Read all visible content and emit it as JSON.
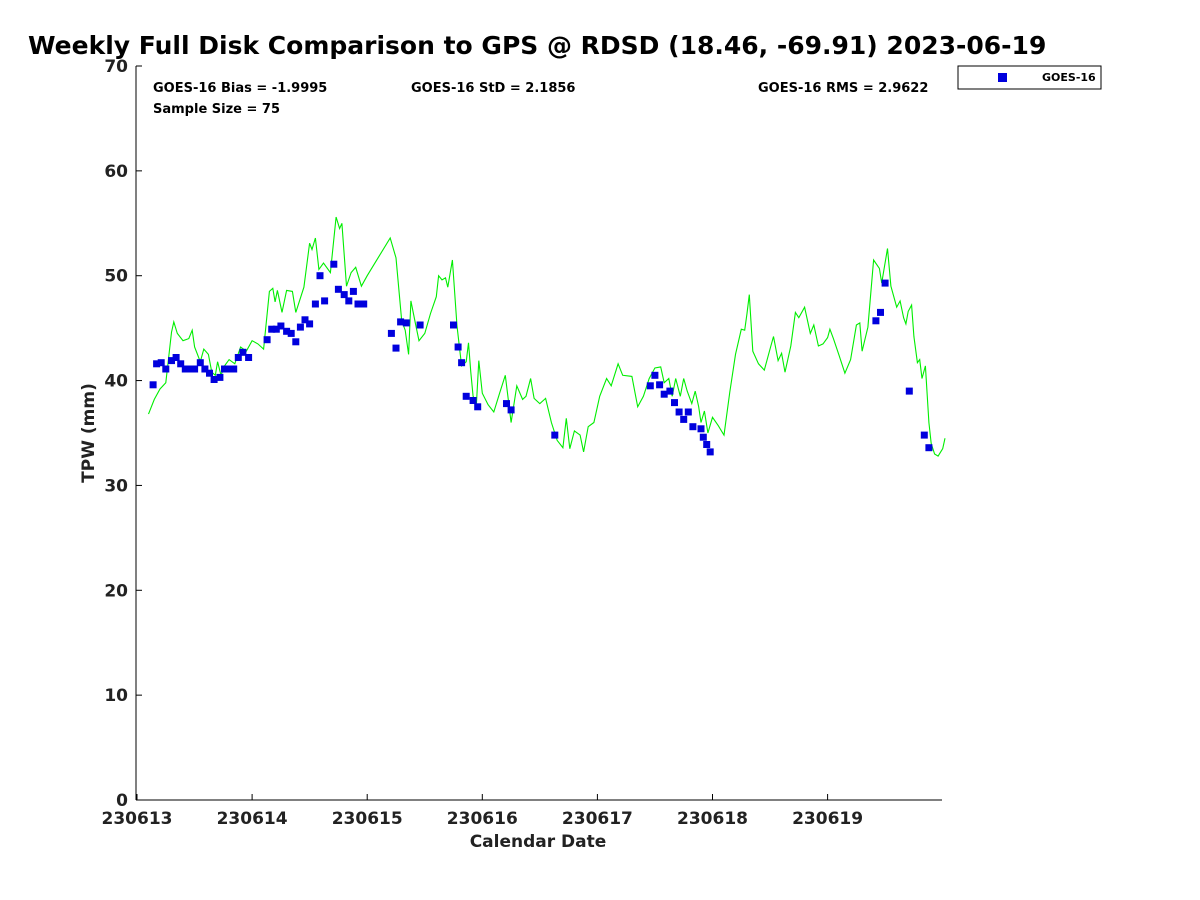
{
  "chart_data": {
    "type": "scatter",
    "title": "Weekly Full Disk Comparison to GPS @ RDSD (18.46, -69.91) 2023-06-19",
    "xlabel": "Calendar Date",
    "ylabel": "TPW (mm)",
    "xlim": [
      0,
      7
    ],
    "ylim": [
      0,
      70
    ],
    "x_tick_values": [
      0,
      1,
      2,
      3,
      4,
      5,
      6
    ],
    "x_tick_labels": [
      "230613",
      "230614",
      "230615",
      "230616",
      "230617",
      "230618",
      "230619"
    ],
    "y_ticks": [
      0,
      10,
      20,
      30,
      40,
      50,
      60,
      70
    ],
    "grid": false,
    "legend_position": "top-right",
    "stats": {
      "bias": "GOES-16 Bias = -1.9995",
      "std": "GOES-16 StD = 2.1856",
      "rms": "GOES-16 RMS = 2.9622",
      "sample": "Sample Size = 75"
    },
    "series": [
      {
        "name": "GOES-16",
        "kind": "scatter",
        "color": "#0000dd",
        "marker": "square",
        "points": [
          [
            0.14,
            39.6
          ],
          [
            0.17,
            41.6
          ],
          [
            0.21,
            41.7
          ],
          [
            0.25,
            41.1
          ],
          [
            0.3,
            41.9
          ],
          [
            0.34,
            42.2
          ],
          [
            0.38,
            41.6
          ],
          [
            0.42,
            41.1
          ],
          [
            0.46,
            41.1
          ],
          [
            0.5,
            41.1
          ],
          [
            0.55,
            41.7
          ],
          [
            0.59,
            41.1
          ],
          [
            0.63,
            40.7
          ],
          [
            0.67,
            40.1
          ],
          [
            0.72,
            40.3
          ],
          [
            0.76,
            41.1
          ],
          [
            0.8,
            41.1
          ],
          [
            0.84,
            41.1
          ],
          [
            0.88,
            42.2
          ],
          [
            0.92,
            42.7
          ],
          [
            0.97,
            42.2
          ],
          [
            1.13,
            43.9
          ],
          [
            1.17,
            44.9
          ],
          [
            1.21,
            44.9
          ],
          [
            1.25,
            45.2
          ],
          [
            1.3,
            44.7
          ],
          [
            1.34,
            44.5
          ],
          [
            1.38,
            43.7
          ],
          [
            1.42,
            45.1
          ],
          [
            1.46,
            45.8
          ],
          [
            1.5,
            45.4
          ],
          [
            1.55,
            47.3
          ],
          [
            1.59,
            50.0
          ],
          [
            1.63,
            47.6
          ],
          [
            1.71,
            51.1
          ],
          [
            1.75,
            48.7
          ],
          [
            1.8,
            48.2
          ],
          [
            1.84,
            47.6
          ],
          [
            1.88,
            48.5
          ],
          [
            1.92,
            47.3
          ],
          [
            1.97,
            47.3
          ],
          [
            2.21,
            44.5
          ],
          [
            2.25,
            43.1
          ],
          [
            2.29,
            45.6
          ],
          [
            2.34,
            45.5
          ],
          [
            2.46,
            45.3
          ],
          [
            2.75,
            45.3
          ],
          [
            2.79,
            43.2
          ],
          [
            2.82,
            41.7
          ],
          [
            2.86,
            38.5
          ],
          [
            2.92,
            38.1
          ],
          [
            2.96,
            37.5
          ],
          [
            3.21,
            37.8
          ],
          [
            3.25,
            37.2
          ],
          [
            3.63,
            34.8
          ],
          [
            4.46,
            39.5
          ],
          [
            4.5,
            40.5
          ],
          [
            4.54,
            39.6
          ],
          [
            4.58,
            38.7
          ],
          [
            4.63,
            39.0
          ],
          [
            4.67,
            37.9
          ],
          [
            4.71,
            37.0
          ],
          [
            4.75,
            36.3
          ],
          [
            4.79,
            37.0
          ],
          [
            4.83,
            35.6
          ],
          [
            4.9,
            35.4
          ],
          [
            4.92,
            34.6
          ],
          [
            4.95,
            33.9
          ],
          [
            4.98,
            33.2
          ],
          [
            6.42,
            45.7
          ],
          [
            6.46,
            46.5
          ],
          [
            6.5,
            49.3
          ],
          [
            6.71,
            39.0
          ],
          [
            6.84,
            34.8
          ],
          [
            6.88,
            33.6
          ]
        ]
      },
      {
        "name": "",
        "kind": "line",
        "color": "#00ee00",
        "points": [
          [
            0.1,
            36.8
          ],
          [
            0.15,
            38.2
          ],
          [
            0.2,
            39.2
          ],
          [
            0.25,
            39.8
          ],
          [
            0.3,
            44.6
          ],
          [
            0.32,
            45.6
          ],
          [
            0.35,
            44.5
          ],
          [
            0.4,
            43.8
          ],
          [
            0.45,
            44.0
          ],
          [
            0.48,
            44.8
          ],
          [
            0.5,
            43.2
          ],
          [
            0.55,
            41.8
          ],
          [
            0.58,
            43.0
          ],
          [
            0.62,
            42.5
          ],
          [
            0.65,
            40.8
          ],
          [
            0.68,
            40.5
          ],
          [
            0.7,
            41.8
          ],
          [
            0.73,
            40.5
          ],
          [
            0.76,
            41.4
          ],
          [
            0.8,
            42.0
          ],
          [
            0.85,
            41.6
          ],
          [
            0.9,
            43.2
          ],
          [
            0.95,
            42.8
          ],
          [
            1.0,
            43.8
          ],
          [
            1.05,
            43.5
          ],
          [
            1.1,
            43.0
          ],
          [
            1.15,
            48.5
          ],
          [
            1.18,
            48.8
          ],
          [
            1.2,
            47.5
          ],
          [
            1.22,
            48.6
          ],
          [
            1.26,
            46.5
          ],
          [
            1.3,
            48.6
          ],
          [
            1.35,
            48.5
          ],
          [
            1.38,
            46.5
          ],
          [
            1.45,
            48.9
          ],
          [
            1.5,
            53.1
          ],
          [
            1.52,
            52.5
          ],
          [
            1.55,
            53.6
          ],
          [
            1.58,
            50.6
          ],
          [
            1.62,
            51.2
          ],
          [
            1.68,
            50.3
          ],
          [
            1.73,
            55.6
          ],
          [
            1.76,
            54.5
          ],
          [
            1.78,
            55.0
          ],
          [
            1.82,
            49.0
          ],
          [
            1.86,
            50.3
          ],
          [
            1.9,
            50.8
          ],
          [
            1.95,
            49.0
          ],
          [
            2.0,
            50.0
          ],
          [
            2.1,
            51.8
          ],
          [
            2.2,
            53.6
          ],
          [
            2.25,
            51.7
          ],
          [
            2.3,
            45.7
          ],
          [
            2.33,
            44.8
          ],
          [
            2.36,
            42.5
          ],
          [
            2.38,
            47.6
          ],
          [
            2.42,
            45.4
          ],
          [
            2.45,
            43.8
          ],
          [
            2.5,
            44.5
          ],
          [
            2.55,
            46.4
          ],
          [
            2.6,
            48.0
          ],
          [
            2.62,
            50.0
          ],
          [
            2.65,
            49.6
          ],
          [
            2.68,
            49.8
          ],
          [
            2.7,
            48.9
          ],
          [
            2.74,
            51.5
          ],
          [
            2.78,
            45.2
          ],
          [
            2.82,
            41.4
          ],
          [
            2.86,
            41.8
          ],
          [
            2.88,
            43.6
          ],
          [
            2.9,
            40.8
          ],
          [
            2.92,
            38.5
          ],
          [
            2.95,
            37.9
          ],
          [
            2.97,
            41.9
          ],
          [
            3.0,
            38.8
          ],
          [
            3.05,
            37.7
          ],
          [
            3.1,
            37.0
          ],
          [
            3.15,
            38.8
          ],
          [
            3.2,
            40.5
          ],
          [
            3.25,
            36.0
          ],
          [
            3.3,
            39.5
          ],
          [
            3.35,
            38.2
          ],
          [
            3.38,
            38.5
          ],
          [
            3.42,
            40.2
          ],
          [
            3.45,
            38.3
          ],
          [
            3.5,
            37.8
          ],
          [
            3.55,
            38.3
          ],
          [
            3.6,
            36.0
          ],
          [
            3.65,
            34.3
          ],
          [
            3.7,
            33.6
          ],
          [
            3.73,
            36.4
          ],
          [
            3.76,
            33.5
          ],
          [
            3.8,
            35.2
          ],
          [
            3.85,
            34.8
          ],
          [
            3.88,
            33.2
          ],
          [
            3.92,
            35.6
          ],
          [
            3.97,
            36.0
          ],
          [
            4.02,
            38.5
          ],
          [
            4.08,
            40.2
          ],
          [
            4.12,
            39.5
          ],
          [
            4.18,
            41.6
          ],
          [
            4.22,
            40.5
          ],
          [
            4.3,
            40.4
          ],
          [
            4.35,
            37.5
          ],
          [
            4.4,
            38.5
          ],
          [
            4.45,
            40.2
          ],
          [
            4.5,
            41.2
          ],
          [
            4.55,
            41.3
          ],
          [
            4.58,
            39.8
          ],
          [
            4.62,
            40.2
          ],
          [
            4.65,
            38.5
          ],
          [
            4.68,
            40.2
          ],
          [
            4.72,
            38.5
          ],
          [
            4.75,
            40.2
          ],
          [
            4.78,
            39.0
          ],
          [
            4.82,
            37.8
          ],
          [
            4.85,
            39.0
          ],
          [
            4.88,
            37.5
          ],
          [
            4.9,
            36.0
          ],
          [
            4.93,
            37.1
          ],
          [
            4.96,
            35.0
          ],
          [
            5.0,
            36.5
          ],
          [
            5.05,
            35.7
          ],
          [
            5.1,
            34.8
          ],
          [
            5.15,
            38.9
          ],
          [
            5.2,
            42.5
          ],
          [
            5.25,
            44.9
          ],
          [
            5.28,
            44.8
          ],
          [
            5.3,
            46.4
          ],
          [
            5.32,
            48.2
          ],
          [
            5.35,
            42.8
          ],
          [
            5.4,
            41.6
          ],
          [
            5.45,
            41.0
          ],
          [
            5.5,
            43.0
          ],
          [
            5.53,
            44.2
          ],
          [
            5.57,
            41.9
          ],
          [
            5.6,
            42.6
          ],
          [
            5.63,
            40.8
          ],
          [
            5.68,
            43.3
          ],
          [
            5.72,
            46.5
          ],
          [
            5.75,
            46.0
          ],
          [
            5.8,
            47.0
          ],
          [
            5.85,
            44.5
          ],
          [
            5.88,
            45.3
          ],
          [
            5.92,
            43.3
          ],
          [
            5.96,
            43.5
          ],
          [
            6.0,
            44.1
          ],
          [
            6.02,
            44.9
          ],
          [
            6.05,
            44.0
          ],
          [
            6.1,
            42.4
          ],
          [
            6.15,
            40.7
          ],
          [
            6.2,
            42.0
          ],
          [
            6.25,
            45.3
          ],
          [
            6.28,
            45.5
          ],
          [
            6.3,
            42.8
          ],
          [
            6.35,
            45.1
          ],
          [
            6.4,
            51.5
          ],
          [
            6.45,
            50.7
          ],
          [
            6.47,
            49.3
          ],
          [
            6.52,
            52.6
          ],
          [
            6.55,
            49.0
          ],
          [
            6.6,
            47.0
          ],
          [
            6.63,
            47.6
          ],
          [
            6.66,
            46.0
          ],
          [
            6.68,
            45.4
          ],
          [
            6.7,
            46.6
          ],
          [
            6.73,
            47.2
          ],
          [
            6.75,
            44.2
          ],
          [
            6.78,
            41.7
          ],
          [
            6.8,
            42.0
          ],
          [
            6.82,
            40.2
          ],
          [
            6.85,
            41.4
          ],
          [
            6.88,
            36.0
          ],
          [
            6.9,
            34.0
          ],
          [
            6.93,
            33.0
          ],
          [
            6.96,
            32.8
          ],
          [
            7.0,
            33.5
          ],
          [
            7.02,
            34.5
          ]
        ]
      }
    ]
  }
}
